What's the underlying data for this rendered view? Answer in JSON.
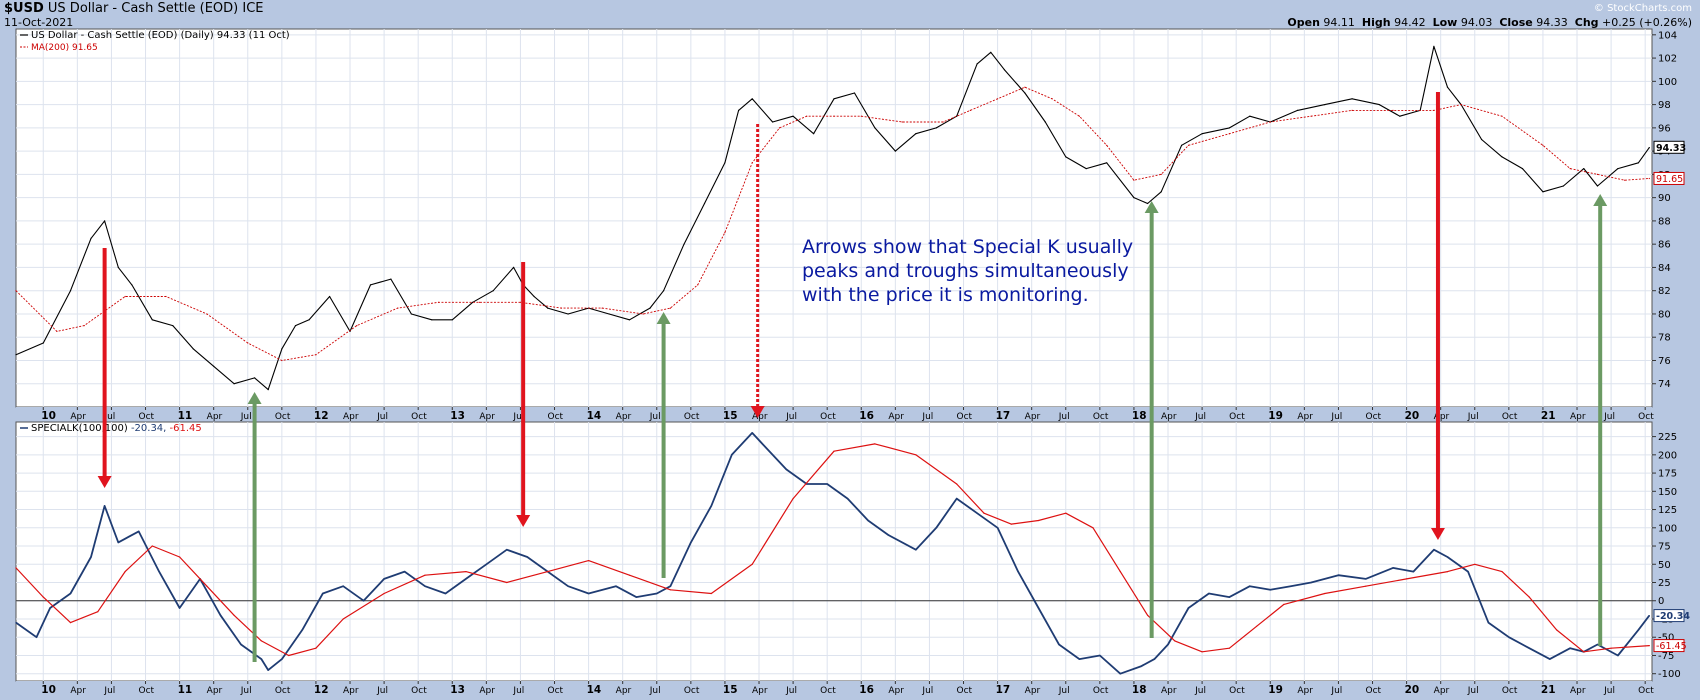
{
  "header": {
    "symbol": "$USD",
    "name": "US Dollar - Cash Settle (EOD)",
    "exchange": "ICE",
    "date": "11-Oct-2021",
    "brand": "© StockCharts.com",
    "open_label": "Open",
    "open": "94.11",
    "high_label": "High",
    "high": "94.42",
    "low_label": "Low",
    "low": "94.03",
    "close_label": "Close",
    "close": "94.33",
    "chg_label": "Chg",
    "chg": "+0.25 (+0.26%)"
  },
  "colors": {
    "background": "#b7c7e1",
    "price": "#000000",
    "ma": "#cc0000",
    "special_k": "#1f3c73",
    "sk_signal": "#dd1111",
    "arrow_red": "#e0141e",
    "arrow_green": "#6b9a63",
    "annotation": "#0a1aa0"
  },
  "annotation": {
    "lines": [
      "Arrows show that Special K usually",
      "peaks and troughs simultaneously",
      "with the price it is monitoring."
    ]
  },
  "chart_data": [
    {
      "type": "line",
      "legend": [
        {
          "name": "US Dollar - Cash Settle (EOD) (Daily) 94.33 (11 Oct)",
          "color": "#000000"
        },
        {
          "name": "MA(200) 91.65",
          "color": "#cc0000"
        }
      ],
      "ylim": [
        72,
        104.5
      ],
      "yticks": [
        74,
        76,
        78,
        80,
        82,
        84,
        86,
        88,
        90,
        92,
        94,
        96,
        98,
        100,
        102,
        104
      ],
      "last_value_tags": [
        {
          "label": "94.33",
          "value": 94.33
        },
        {
          "label": "91.65",
          "value": 91.65
        }
      ],
      "series": [
        {
          "name": "US Dollar - Cash Settle (EOD)",
          "x": [
            2009.8,
            2010.0,
            2010.2,
            2010.35,
            2010.45,
            2010.55,
            2010.65,
            2010.8,
            2010.95,
            2011.1,
            2011.25,
            2011.4,
            2011.55,
            2011.65,
            2011.75,
            2011.85,
            2011.95,
            2012.1,
            2012.25,
            2012.4,
            2012.55,
            2012.7,
            2012.85,
            2013.0,
            2013.15,
            2013.3,
            2013.45,
            2013.52,
            2013.6,
            2013.7,
            2013.85,
            2014.0,
            2014.15,
            2014.3,
            2014.45,
            2014.55,
            2014.7,
            2014.85,
            2015.0,
            2015.1,
            2015.2,
            2015.35,
            2015.5,
            2015.65,
            2015.8,
            2015.95,
            2016.1,
            2016.25,
            2016.4,
            2016.55,
            2016.7,
            2016.85,
            2016.95,
            2017.05,
            2017.2,
            2017.35,
            2017.5,
            2017.65,
            2017.8,
            2018.0,
            2018.1,
            2018.2,
            2018.35,
            2018.5,
            2018.7,
            2018.85,
            2019.0,
            2019.2,
            2019.4,
            2019.6,
            2019.8,
            2019.95,
            2020.1,
            2020.2,
            2020.3,
            2020.4,
            2020.55,
            2020.7,
            2020.85,
            2021.0,
            2021.15,
            2021.3,
            2021.4,
            2021.55,
            2021.7,
            2021.78
          ],
          "values": [
            76.5,
            77.5,
            82.0,
            86.5,
            88.0,
            84.0,
            82.5,
            79.5,
            79.0,
            77.0,
            75.5,
            74.0,
            74.5,
            73.5,
            77.0,
            79.0,
            79.5,
            81.5,
            78.5,
            82.5,
            83.0,
            80.0,
            79.5,
            79.5,
            81.0,
            82.0,
            84.0,
            82.5,
            81.5,
            80.5,
            80.0,
            80.5,
            80.0,
            79.5,
            80.5,
            82.0,
            86.0,
            89.5,
            93.0,
            97.5,
            98.5,
            96.5,
            97.0,
            95.5,
            98.5,
            99.0,
            96.0,
            94.0,
            95.5,
            96.0,
            97.0,
            101.5,
            102.5,
            101.0,
            99.0,
            96.5,
            93.5,
            92.5,
            93.0,
            90.0,
            89.5,
            90.5,
            94.5,
            95.5,
            96.0,
            97.0,
            96.5,
            97.5,
            98.0,
            98.5,
            98.0,
            97.0,
            97.5,
            103.0,
            99.5,
            98.0,
            95.0,
            93.5,
            92.5,
            90.5,
            91.0,
            92.5,
            91.0,
            92.5,
            93.0,
            94.3
          ]
        },
        {
          "name": "MA(200)",
          "x": [
            2009.8,
            2010.1,
            2010.3,
            2010.6,
            2010.9,
            2011.2,
            2011.5,
            2011.75,
            2012.0,
            2012.3,
            2012.6,
            2012.9,
            2013.2,
            2013.5,
            2013.8,
            2014.1,
            2014.4,
            2014.6,
            2014.8,
            2015.0,
            2015.2,
            2015.4,
            2015.6,
            2015.8,
            2016.0,
            2016.3,
            2016.6,
            2016.8,
            2017.0,
            2017.2,
            2017.4,
            2017.6,
            2017.8,
            2018.0,
            2018.2,
            2018.4,
            2018.7,
            2019.0,
            2019.3,
            2019.6,
            2019.9,
            2020.2,
            2020.4,
            2020.7,
            2021.0,
            2021.2,
            2021.4,
            2021.6,
            2021.78
          ],
          "values": [
            82.0,
            78.5,
            79.0,
            81.5,
            81.5,
            80.0,
            77.5,
            76.0,
            76.5,
            79.0,
            80.5,
            81.0,
            81.0,
            81.0,
            80.5,
            80.5,
            80.0,
            80.5,
            82.5,
            87.0,
            93.0,
            96.0,
            97.0,
            97.0,
            97.0,
            96.5,
            96.5,
            97.5,
            98.5,
            99.5,
            98.5,
            97.0,
            94.5,
            91.5,
            92.0,
            94.5,
            95.5,
            96.5,
            97.0,
            97.5,
            97.5,
            97.5,
            98.0,
            97.0,
            94.5,
            92.5,
            92.0,
            91.5,
            91.65
          ]
        }
      ],
      "x_ticks": [
        "10",
        "Apr",
        "Jul",
        "Oct",
        "11",
        "Apr",
        "Jul",
        "Oct",
        "12",
        "Apr",
        "Jul",
        "Oct",
        "13",
        "Apr",
        "Jul",
        "Oct",
        "14",
        "Apr",
        "Jul",
        "Oct",
        "15",
        "Apr",
        "Jul",
        "Oct",
        "16",
        "Apr",
        "Jul",
        "Oct",
        "17",
        "Apr",
        "Jul",
        "Oct",
        "18",
        "Apr",
        "Jul",
        "Oct",
        "19",
        "Apr",
        "Jul",
        "Oct",
        "20",
        "Apr",
        "Jul",
        "Oct",
        "21",
        "Apr",
        "Jul",
        "Oct"
      ],
      "grid": true
    },
    {
      "type": "line",
      "legend": [
        {
          "name": "SPECIALK(100,100)",
          "color": "#000000"
        },
        {
          "name": "-20.34",
          "color": "#1f3c73"
        },
        {
          "name": "-61.45",
          "color": "#dd1111"
        }
      ],
      "ylim": [
        -110,
        245
      ],
      "yticks": [
        -100,
        -75,
        -50,
        -25,
        0,
        25,
        50,
        75,
        100,
        125,
        150,
        175,
        200,
        225
      ],
      "last_value_tags": [
        {
          "label": "-20.34",
          "value": -20.34
        },
        {
          "label": "-61.45",
          "value": -61.45
        }
      ],
      "zero_line": 0,
      "series": [
        {
          "name": "SPECIALK(100,100)",
          "x": [
            2009.8,
            2009.95,
            2010.05,
            2010.2,
            2010.35,
            2010.45,
            2010.55,
            2010.7,
            2010.85,
            2011.0,
            2011.15,
            2011.3,
            2011.45,
            2011.6,
            2011.65,
            2011.75,
            2011.9,
            2012.05,
            2012.2,
            2012.35,
            2012.5,
            2012.65,
            2012.8,
            2012.95,
            2013.1,
            2013.25,
            2013.4,
            2013.55,
            2013.7,
            2013.85,
            2014.0,
            2014.2,
            2014.35,
            2014.5,
            2014.6,
            2014.75,
            2014.9,
            2015.05,
            2015.2,
            2015.3,
            2015.45,
            2015.6,
            2015.75,
            2015.9,
            2016.05,
            2016.2,
            2016.4,
            2016.55,
            2016.7,
            2016.85,
            2017.0,
            2017.15,
            2017.3,
            2017.45,
            2017.6,
            2017.75,
            2017.9,
            2018.05,
            2018.15,
            2018.25,
            2018.4,
            2018.55,
            2018.7,
            2018.85,
            2019.0,
            2019.15,
            2019.3,
            2019.5,
            2019.7,
            2019.9,
            2020.05,
            2020.2,
            2020.3,
            2020.45,
            2020.6,
            2020.75,
            2020.9,
            2021.05,
            2021.2,
            2021.3,
            2021.4,
            2021.55,
            2021.7,
            2021.78
          ],
          "values": [
            -30,
            -50,
            -10,
            10,
            60,
            130,
            80,
            95,
            40,
            -10,
            30,
            -20,
            -60,
            -80,
            -95,
            -80,
            -40,
            10,
            20,
            0,
            30,
            40,
            20,
            10,
            30,
            50,
            70,
            60,
            40,
            20,
            10,
            20,
            5,
            10,
            20,
            80,
            130,
            200,
            230,
            210,
            180,
            160,
            160,
            140,
            110,
            90,
            70,
            100,
            140,
            120,
            100,
            40,
            -10,
            -60,
            -80,
            -75,
            -100,
            -90,
            -80,
            -60,
            -10,
            10,
            5,
            20,
            15,
            20,
            25,
            35,
            30,
            45,
            40,
            70,
            60,
            40,
            -30,
            -50,
            -65,
            -80,
            -65,
            -70,
            -60,
            -75,
            -40,
            -20.34
          ]
        },
        {
          "name": "Signal",
          "x": [
            2009.8,
            2010.0,
            2010.2,
            2010.4,
            2010.6,
            2010.8,
            2011.0,
            2011.2,
            2011.4,
            2011.6,
            2011.8,
            2012.0,
            2012.2,
            2012.5,
            2012.8,
            2013.1,
            2013.4,
            2013.7,
            2014.0,
            2014.3,
            2014.6,
            2014.9,
            2015.2,
            2015.5,
            2015.8,
            2016.1,
            2016.4,
            2016.7,
            2016.9,
            2017.1,
            2017.3,
            2017.5,
            2017.7,
            2017.9,
            2018.1,
            2018.3,
            2018.5,
            2018.7,
            2018.9,
            2019.1,
            2019.4,
            2019.7,
            2020.0,
            2020.3,
            2020.5,
            2020.7,
            2020.9,
            2021.1,
            2021.3,
            2021.5,
            2021.78
          ],
          "values": [
            45,
            5,
            -30,
            -15,
            40,
            75,
            60,
            20,
            -20,
            -55,
            -75,
            -65,
            -25,
            10,
            35,
            40,
            25,
            40,
            55,
            35,
            15,
            10,
            50,
            140,
            205,
            215,
            200,
            160,
            120,
            105,
            110,
            120,
            100,
            40,
            -20,
            -55,
            -70,
            -65,
            -35,
            -5,
            10,
            20,
            30,
            40,
            50,
            40,
            5,
            -40,
            -70,
            -65,
            -61.45
          ]
        }
      ]
    }
  ]
}
